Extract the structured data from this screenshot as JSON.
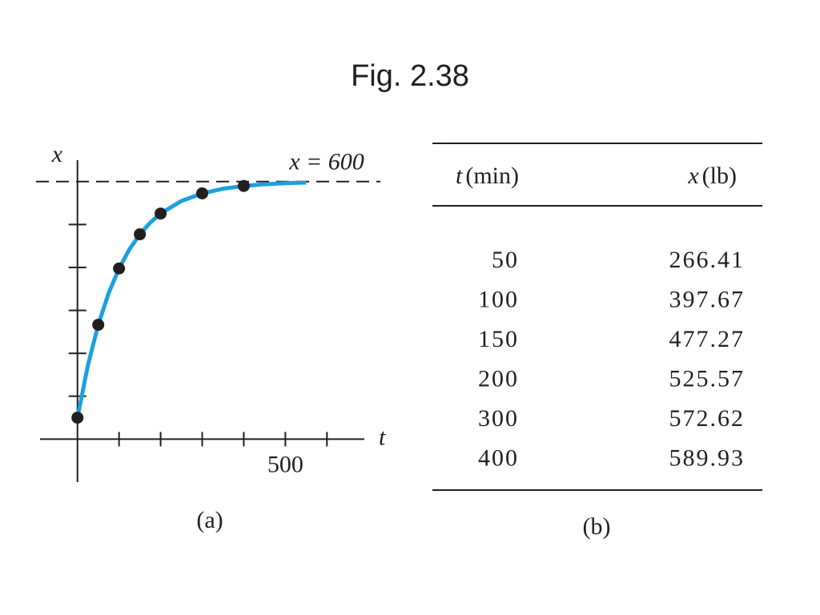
{
  "title": "Fig. 2.38",
  "chart_data": {
    "type": "line",
    "caption": "(a)",
    "xlabel": "t",
    "ylabel": "x",
    "annotation": "x = 600",
    "asymptote": 600,
    "xlim": [
      -90,
      690
    ],
    "ylim": [
      -100,
      650
    ],
    "xticks": [
      100,
      200,
      300,
      400,
      500,
      600
    ],
    "x_labeled_ticks": [
      500
    ],
    "yticks": [
      100,
      200,
      300,
      400,
      500
    ],
    "curve": {
      "color": "#1ca0e0",
      "x": [
        0,
        25,
        50,
        75,
        100,
        125,
        150,
        175,
        200,
        250,
        300,
        350,
        400,
        450,
        500,
        550
      ],
      "values": [
        50,
        171.7,
        266.4,
        340.2,
        397.7,
        442.4,
        477.3,
        504.4,
        525.6,
        554.9,
        572.6,
        583.4,
        589.9,
        593.9,
        596.3,
        597.8
      ]
    },
    "points": {
      "color": "#231f20",
      "x": [
        0,
        50,
        100,
        150,
        200,
        300,
        400
      ],
      "values": [
        50,
        266.41,
        397.67,
        477.27,
        525.57,
        572.62,
        589.93
      ]
    }
  },
  "table": {
    "caption": "(b)",
    "header": [
      [
        "t",
        "(min)"
      ],
      [
        "x",
        "(lb)"
      ]
    ],
    "rows": [
      [
        "50",
        "266.41"
      ],
      [
        "100",
        "397.67"
      ],
      [
        "150",
        "477.27"
      ],
      [
        "200",
        "525.57"
      ],
      [
        "300",
        "572.62"
      ],
      [
        "400",
        "589.93"
      ]
    ]
  }
}
